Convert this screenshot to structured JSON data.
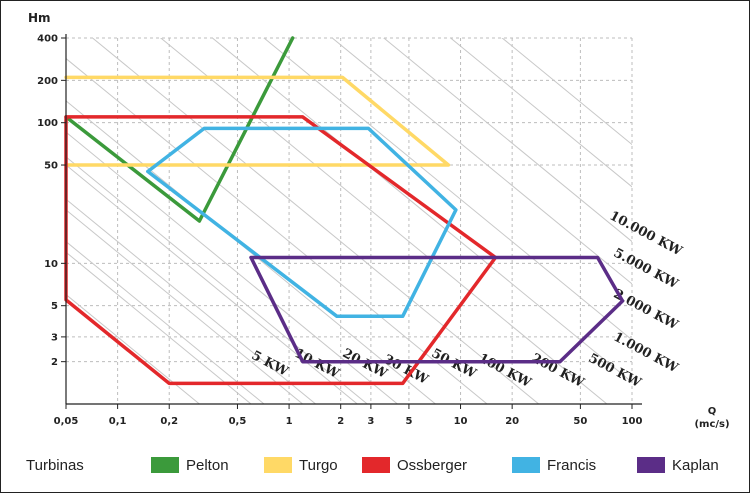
{
  "chart_data": {
    "type": "area",
    "ylabel": "Hm",
    "xlabel_line1": "Q",
    "xlabel_line2": "(mc/s)",
    "x_scale": "log",
    "y_scale": "log",
    "xlim": [
      0.05,
      100
    ],
    "ylim": [
      1,
      400
    ],
    "x_ticks": [
      {
        "value": 0.05,
        "label": "0,05"
      },
      {
        "value": 0.1,
        "label": "0,1"
      },
      {
        "value": 0.2,
        "label": "0,2"
      },
      {
        "value": 0.5,
        "label": "0,5"
      },
      {
        "value": 1,
        "label": "1"
      },
      {
        "value": 2,
        "label": "2"
      },
      {
        "value": 3,
        "label": "3"
      },
      {
        "value": 5,
        "label": "5"
      },
      {
        "value": 10,
        "label": "10"
      },
      {
        "value": 20,
        "label": "20"
      },
      {
        "value": 50,
        "label": "50"
      },
      {
        "value": 100,
        "label": "100"
      }
    ],
    "y_ticks": [
      {
        "value": 400,
        "label": "400"
      },
      {
        "value": 200,
        "label": "200"
      },
      {
        "value": 100,
        "label": "100"
      },
      {
        "value": 50,
        "label": "50"
      },
      {
        "value": 10,
        "label": "10"
      },
      {
        "value": 5,
        "label": "5"
      },
      {
        "value": 3,
        "label": "3"
      },
      {
        "value": 2,
        "label": "2"
      }
    ],
    "power_lines": [
      {
        "label": "5 KW",
        "kw": 5
      },
      {
        "label": "10 KW",
        "kw": 10
      },
      {
        "label": "20 KW",
        "kw": 20
      },
      {
        "label": "30 KW",
        "kw": 30
      },
      {
        "label": "50 KW",
        "kw": 50
      },
      {
        "label": "100 KW",
        "kw": 100
      },
      {
        "label": "200 KW",
        "kw": 200
      },
      {
        "label": "500 KW",
        "kw": 500
      },
      {
        "label": "1.000 KW",
        "kw": 1000
      },
      {
        "label": "2.000 KW",
        "kw": 2000
      },
      {
        "label": "5.000 KW",
        "kw": 5000
      },
      {
        "label": "10.000 KW",
        "kw": 10000
      }
    ],
    "grid": true,
    "legend_title": "Turbinas",
    "legend_position": "bottom",
    "series": [
      {
        "name": "Pelton",
        "color": "#3b9a3b",
        "closed": false,
        "points": [
          [
            0.05,
            110
          ],
          [
            0.3,
            20
          ],
          [
            1.05,
            400
          ]
        ]
      },
      {
        "name": "Turgo",
        "color": "#ffd966",
        "closed": false,
        "points": [
          [
            0.05,
            210
          ],
          [
            2.05,
            210
          ],
          [
            8.5,
            50
          ],
          [
            0.05,
            50
          ]
        ]
      },
      {
        "name": "Ossberger",
        "color": "#e3282b",
        "closed": false,
        "points": [
          [
            0.05,
            110
          ],
          [
            1.2,
            110
          ],
          [
            16,
            11
          ],
          [
            4.6,
            1.4
          ],
          [
            0.2,
            1.4
          ],
          [
            0.05,
            5.5
          ],
          [
            0.05,
            110
          ]
        ]
      },
      {
        "name": "Francis",
        "color": "#41b3e3",
        "closed": true,
        "points": [
          [
            0.15,
            45
          ],
          [
            0.32,
            91
          ],
          [
            2.9,
            91
          ],
          [
            9.4,
            24
          ],
          [
            4.6,
            4.2
          ],
          [
            1.9,
            4.2
          ]
        ]
      },
      {
        "name": "Kaplan",
        "color": "#5b2d87",
        "closed": true,
        "points": [
          [
            0.6,
            11
          ],
          [
            63,
            11
          ],
          [
            88,
            5.4
          ],
          [
            38,
            2
          ],
          [
            1.2,
            2
          ]
        ]
      }
    ]
  }
}
